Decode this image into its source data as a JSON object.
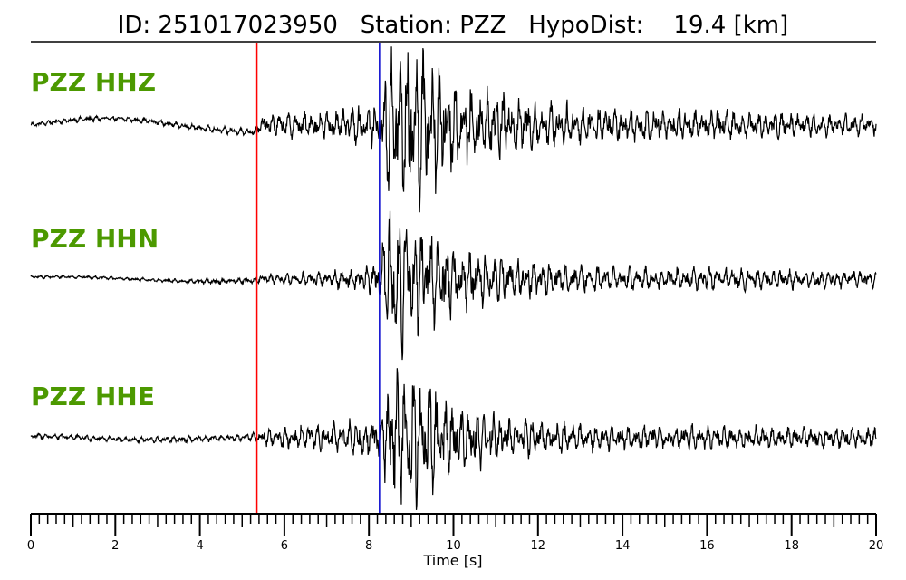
{
  "chart_data": {
    "type": "line",
    "title": "ID: 251017023950   Station: PZZ   HypoDist:    19.4 [km]",
    "xlabel": "Time [s]",
    "ylabel": "",
    "xlim": [
      0,
      20
    ],
    "xticks": [
      0,
      2,
      4,
      6,
      8,
      10,
      12,
      14,
      16,
      18,
      20
    ],
    "xtick_labels": [
      "0",
      "2",
      "4",
      "6",
      "8",
      "10",
      "12",
      "14",
      "16",
      "18",
      "20"
    ],
    "minor_tick_step": 0.2,
    "grid": false,
    "picks": [
      {
        "time": 5.35,
        "color": "#ff0000"
      },
      {
        "time": 8.25,
        "color": "#0000cc"
      }
    ],
    "series": [
      {
        "name": "PZZ HHZ",
        "color": "#000000",
        "label_color": "#4c9900",
        "envelope": {
          "times": [
            0,
            2,
            4,
            5.3,
            5.5,
            7.0,
            8.2,
            8.5,
            9.0,
            10.0,
            12.0,
            14.0,
            16.0,
            18.0,
            20.0
          ],
          "amplitudes": [
            0.03,
            0.03,
            0.04,
            0.05,
            0.12,
            0.18,
            0.25,
            0.95,
            1.0,
            0.55,
            0.28,
            0.2,
            0.2,
            0.15,
            0.12
          ]
        }
      },
      {
        "name": "PZZ HHN",
        "color": "#000000",
        "label_color": "#4c9900",
        "envelope": {
          "times": [
            0,
            2,
            4,
            5.3,
            5.5,
            7.0,
            8.2,
            8.5,
            9.0,
            10.0,
            12.0,
            14.0,
            16.0,
            18.0,
            20.0
          ],
          "amplitudes": [
            0.02,
            0.02,
            0.03,
            0.04,
            0.06,
            0.1,
            0.2,
            1.0,
            0.8,
            0.45,
            0.22,
            0.15,
            0.15,
            0.12,
            0.1
          ]
        }
      },
      {
        "name": "PZZ HHE",
        "color": "#000000",
        "label_color": "#4c9900",
        "envelope": {
          "times": [
            0,
            2,
            4,
            5.3,
            5.5,
            7.0,
            8.2,
            8.5,
            9.0,
            10.0,
            12.0,
            14.0,
            16.0,
            18.0,
            20.0
          ],
          "amplitudes": [
            0.04,
            0.04,
            0.05,
            0.06,
            0.12,
            0.22,
            0.3,
            0.9,
            1.0,
            0.5,
            0.25,
            0.18,
            0.18,
            0.16,
            0.15
          ]
        }
      }
    ]
  }
}
